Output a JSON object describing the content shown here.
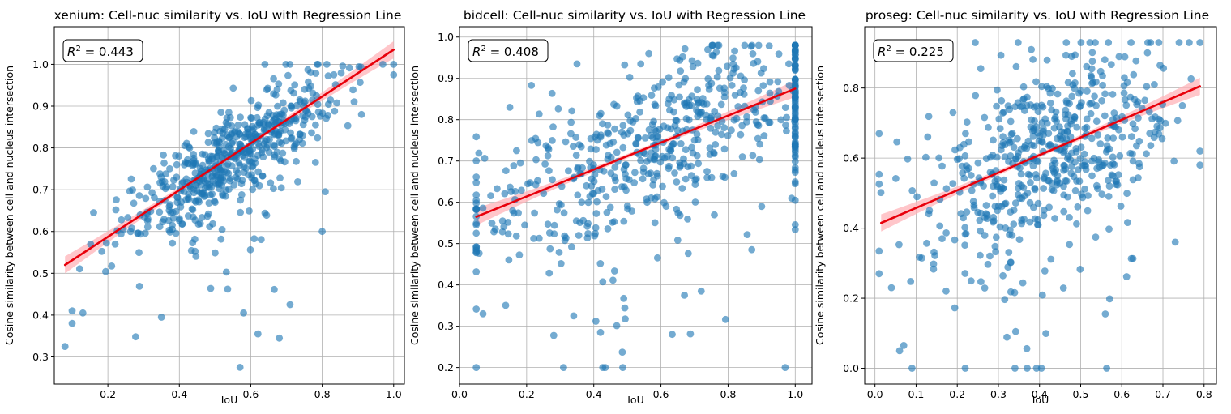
{
  "colors": {
    "points": "#1f77b4",
    "line": "#e8000b",
    "band": "#ffb3b8",
    "grid": "#b0b0b0",
    "axes": "#000000"
  },
  "chart_data": [
    {
      "type": "scatter",
      "title": "xenium: Cell-nuc similarity vs. IoU with Regression Line",
      "xlabel": "IoU",
      "ylabel": "Cosine similarity between cell and nucleus intersection",
      "xlim": [
        0.05,
        1.03
      ],
      "ylim": [
        0.235,
        1.09
      ],
      "xticks": [
        0.2,
        0.4,
        0.6,
        0.8,
        1.0
      ],
      "xtick_labels": [
        "0.2",
        "0.4",
        "0.6",
        "0.8",
        "1.0"
      ],
      "yticks": [
        0.3,
        0.4,
        0.5,
        0.6,
        0.7,
        0.8,
        0.9,
        1.0
      ],
      "ytick_labels": [
        "0.3",
        "0.4",
        "0.5",
        "0.6",
        "0.7",
        "0.8",
        "0.9",
        "1.0"
      ],
      "grid": true,
      "r2_prefix": "R² = ",
      "r2": "0.443",
      "regression": {
        "x": [
          0.08,
          1.0
        ],
        "y": [
          0.52,
          1.035
        ]
      },
      "x_range": [
        0.08,
        1.0
      ],
      "n_points": 560,
      "seed": 11,
      "noise_sd": 0.055,
      "outlier_rate": 0.1,
      "x_dist": {
        "center": 0.55,
        "spread": 0.14
      },
      "y_clip": [
        0.27,
        1.0
      ],
      "points": [
        {
          "x": 0.08,
          "y": 0.325
        },
        {
          "x": 0.1,
          "y": 0.41
        },
        {
          "x": 0.1,
          "y": 0.38
        },
        {
          "x": 0.13,
          "y": 0.405
        },
        {
          "x": 0.57,
          "y": 0.275
        },
        {
          "x": 0.62,
          "y": 0.355
        },
        {
          "x": 0.68,
          "y": 0.345
        },
        {
          "x": 0.71,
          "y": 0.425
        },
        {
          "x": 0.8,
          "y": 0.6
        },
        {
          "x": 1.0,
          "y": 1.0
        },
        {
          "x": 1.0,
          "y": 0.975
        },
        {
          "x": 0.91,
          "y": 0.88
        },
        {
          "x": 0.16,
          "y": 0.645
        },
        {
          "x": 0.35,
          "y": 0.395
        },
        {
          "x": 0.58,
          "y": 0.405
        }
      ]
    },
    {
      "type": "scatter",
      "title": "bidcell: Cell-nuc similarity vs. IoU with Regression Line",
      "xlabel": "IoU",
      "ylabel": "Cosine similarity between cell and nucleus intersection",
      "xlim": [
        0.0,
        1.05
      ],
      "ylim": [
        0.16,
        1.025
      ],
      "xticks": [
        0.0,
        0.2,
        0.4,
        0.6,
        0.8,
        1.0
      ],
      "xtick_labels": [
        "0.0",
        "0.2",
        "0.4",
        "0.6",
        "0.8",
        "1.0"
      ],
      "yticks": [
        0.2,
        0.3,
        0.4,
        0.5,
        0.6,
        0.7,
        0.8,
        0.9,
        1.0
      ],
      "ytick_labels": [
        "0.2",
        "0.3",
        "0.4",
        "0.5",
        "0.6",
        "0.7",
        "0.8",
        "0.9",
        "1.0"
      ],
      "grid": true,
      "r2_prefix": "R² = ",
      "r2": "0.408",
      "regression": {
        "x": [
          0.05,
          1.0
        ],
        "y": [
          0.565,
          0.875
        ]
      },
      "x_range": [
        0.05,
        1.0
      ],
      "n_points": 600,
      "seed": 23,
      "noise_sd": 0.09,
      "outlier_rate": 0.08,
      "x_dist": {
        "center": 0.55,
        "spread": 0.27,
        "pile_at_one": 0.09
      },
      "y_clip": [
        0.2,
        0.98
      ],
      "points": [
        {
          "x": 0.97,
          "y": 0.2
        },
        {
          "x": 0.42,
          "y": 0.285
        },
        {
          "x": 0.07,
          "y": 0.33
        },
        {
          "x": 0.34,
          "y": 0.325
        },
        {
          "x": 1.0,
          "y": 0.98
        },
        {
          "x": 0.72,
          "y": 0.385
        },
        {
          "x": 0.67,
          "y": 0.375
        },
        {
          "x": 0.35,
          "y": 0.935
        },
        {
          "x": 0.15,
          "y": 0.83
        },
        {
          "x": 0.54,
          "y": 0.935
        },
        {
          "x": 0.9,
          "y": 0.59
        }
      ]
    },
    {
      "type": "scatter",
      "title": "proseg: Cell-nuc similarity vs. IoU with Regression Line",
      "xlabel": "IoU",
      "ylabel": "Cosine similarity between cell and nucleus intersection",
      "xlim": [
        -0.025,
        0.83
      ],
      "ylim": [
        -0.045,
        0.975
      ],
      "xticks": [
        0.0,
        0.1,
        0.2,
        0.3,
        0.4,
        0.5,
        0.6,
        0.7,
        0.8
      ],
      "xtick_labels": [
        "0.0",
        "0.1",
        "0.2",
        "0.3",
        "0.4",
        "0.5",
        "0.6",
        "0.7",
        "0.8"
      ],
      "yticks": [
        0.0,
        0.2,
        0.4,
        0.6,
        0.8
      ],
      "ytick_labels": [
        "0.0",
        "0.2",
        "0.4",
        "0.6",
        "0.8"
      ],
      "grid": true,
      "r2_prefix": "R² = ",
      "r2": "0.225",
      "regression": {
        "x": [
          0.015,
          0.79
        ],
        "y": [
          0.415,
          0.805
        ]
      },
      "x_range": [
        0.01,
        0.79
      ],
      "n_points": 560,
      "seed": 37,
      "noise_sd": 0.14,
      "outlier_rate": 0.06,
      "x_dist": {
        "center": 0.42,
        "spread": 0.15
      },
      "y_clip": [
        0.0,
        0.93
      ],
      "points": [
        {
          "x": 0.09,
          "y": 0.0
        },
        {
          "x": 0.37,
          "y": 0.0
        },
        {
          "x": 0.06,
          "y": 0.05
        },
        {
          "x": 0.07,
          "y": 0.065
        },
        {
          "x": 0.79,
          "y": 0.62
        },
        {
          "x": 0.73,
          "y": 0.36
        },
        {
          "x": 0.69,
          "y": 0.93
        },
        {
          "x": 0.01,
          "y": 0.67
        },
        {
          "x": 0.01,
          "y": 0.27
        },
        {
          "x": 0.04,
          "y": 0.23
        },
        {
          "x": 0.56,
          "y": 0.155
        },
        {
          "x": 0.38,
          "y": 0.91
        }
      ]
    }
  ]
}
